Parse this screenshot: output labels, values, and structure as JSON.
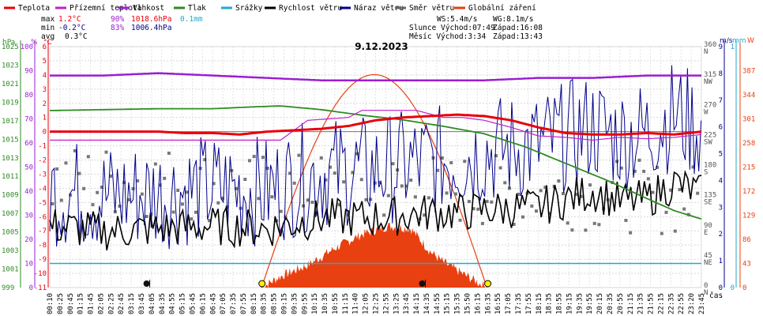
{
  "chart_data": {
    "type": "line",
    "title": "9.12.2023",
    "xlabel": "čas",
    "legend": {
      "placement": "top",
      "entries": [
        {
          "key": "temp",
          "label": "Teplota",
          "color": "#e8000b"
        },
        {
          "key": "feels",
          "label": "Přízemní teplota",
          "color": "#c020c8"
        },
        {
          "key": "hum",
          "label": "Vlhkost",
          "color": "#9a1ed2"
        },
        {
          "key": "press",
          "label": "Tlak",
          "color": "#2e8b22"
        },
        {
          "key": "rain",
          "label": "Srážky",
          "color": "#20aacc"
        },
        {
          "key": "ws",
          "label": "Rychlost větru",
          "color": "#000000"
        },
        {
          "key": "wg",
          "label": "Náraz větru",
          "color": "#00008b"
        },
        {
          "key": "wd",
          "label": "Směr větru",
          "color": "#666666"
        },
        {
          "key": "sol",
          "label": "Globální záření",
          "color": "#e84010"
        }
      ]
    },
    "stats": {
      "max": {
        "label": "max",
        "temp": "1.2°C",
        "hum": "90%",
        "press": "1018.6hPa",
        "rain": "0.1mm"
      },
      "min": {
        "label": "min",
        "temp": "-0.2°C",
        "hum": "83%",
        "press": "1006.4hPa"
      },
      "avg": {
        "label": "avg",
        "temp": "0.3°C"
      }
    },
    "info": {
      "ws": "WS:5.4m/s",
      "wg": "WG:8.1m/s",
      "sun": "Slunce Východ:07:49",
      "sun_set": "Západ:16:08",
      "moon": "Měsíc  Východ:3:34",
      "moon_set": "Západ:13:43"
    },
    "axes": {
      "hpa": {
        "unit": "hPa",
        "ticks": [
          "999",
          "1001",
          "1003",
          "1005",
          "1007",
          "1009",
          "1011",
          "1013",
          "1015",
          "1017",
          "1019",
          "1021",
          "1023",
          "1025"
        ],
        "range": [
          999,
          1025
        ]
      },
      "pct": {
        "unit": "%",
        "ticks": [
          "0",
          "10",
          "20",
          "30",
          "40",
          "50",
          "60",
          "70",
          "80",
          "90",
          "100"
        ],
        "range": [
          0,
          100
        ]
      },
      "degc": {
        "unit": "°C",
        "ticks": [
          "-11",
          "-10",
          "-9",
          "-8",
          "-7",
          "-6",
          "-5",
          "-4",
          "-3",
          "-2",
          "-1",
          "0",
          "1",
          "2",
          "3",
          "4",
          "5",
          "6"
        ],
        "range": [
          -11,
          6
        ]
      },
      "dir": {
        "ticks": [
          {
            "deg": "0",
            "card": "N"
          },
          {
            "deg": "45",
            "card": "NE"
          },
          {
            "deg": "90",
            "card": "E"
          },
          {
            "deg": "135",
            "card": "SE"
          },
          {
            "deg": "180",
            "card": "S"
          },
          {
            "deg": "225",
            "card": "SW"
          },
          {
            "deg": "270",
            "card": "W"
          },
          {
            "deg": "315",
            "card": "NW"
          },
          {
            "deg": "360",
            "card": "N"
          }
        ],
        "range": [
          0,
          360
        ]
      },
      "ms": {
        "unit": "m/s",
        "ticks": [
          "0",
          "1",
          "2",
          "3",
          "4",
          "5",
          "6",
          "7",
          "8",
          "9"
        ],
        "range": [
          0,
          9
        ]
      },
      "mm": {
        "unit": "mm",
        "ticks": [
          "0",
          "1"
        ],
        "range": [
          0,
          1
        ]
      },
      "wm2": {
        "unit": "W",
        "ticks": [
          "0",
          "43",
          "86",
          "129",
          "172",
          "215",
          "258",
          "301",
          "344",
          "387"
        ],
        "range": [
          0,
          430
        ]
      }
    },
    "x_ticks": [
      "00:10",
      "00:25",
      "00:45",
      "01:15",
      "01:45",
      "02:05",
      "02:25",
      "02:45",
      "03:15",
      "03:45",
      "04:05",
      "04:35",
      "04:55",
      "05:15",
      "05:45",
      "06:15",
      "06:45",
      "07:05",
      "07:35",
      "07:55",
      "08:15",
      "08:35",
      "08:55",
      "09:15",
      "09:35",
      "09:55",
      "10:15",
      "10:35",
      "10:55",
      "11:15",
      "11:40",
      "12:05",
      "12:25",
      "12:55",
      "13:25",
      "13:45",
      "14:15",
      "14:35",
      "14:55",
      "15:15",
      "15:35",
      "15:50",
      "16:15",
      "16:35",
      "16:55",
      "17:05",
      "17:35",
      "17:55",
      "18:15",
      "18:35",
      "18:55",
      "19:15",
      "19:35",
      "19:55",
      "20:15",
      "20:35",
      "20:55",
      "21:15",
      "21:35",
      "21:55",
      "22:15",
      "22:35",
      "22:55",
      "23:20",
      "23:45"
    ],
    "markers": [
      {
        "type": "moonrise",
        "time": "03:34"
      },
      {
        "type": "sunrise",
        "time": "07:49"
      },
      {
        "type": "moonset",
        "time": "13:43"
      },
      {
        "type": "sunset",
        "time": "16:08"
      }
    ],
    "series": [
      {
        "name": "Teplota",
        "unit": "°C",
        "t": [
          0,
          1,
          2,
          3,
          4,
          5,
          6,
          7,
          8,
          9,
          10,
          11,
          12,
          13,
          14,
          15,
          16,
          17,
          18,
          19,
          20,
          21,
          22,
          23,
          24
        ],
        "values": [
          0.0,
          0.0,
          0.0,
          0.0,
          0.0,
          -0.1,
          -0.1,
          -0.2,
          0.0,
          0.1,
          0.2,
          0.4,
          0.8,
          1.0,
          1.1,
          1.2,
          1.1,
          0.8,
          0.3,
          -0.1,
          -0.2,
          -0.2,
          -0.1,
          -0.2,
          0.0
        ]
      },
      {
        "name": "Přízemní teplota",
        "unit": "°C",
        "t": [
          0,
          0.5,
          2,
          3.5,
          5,
          6.5,
          8.5,
          9.5,
          11,
          11.5,
          12.5,
          13.5,
          14.5,
          15.2,
          16,
          17,
          18,
          19,
          20,
          21,
          22,
          23,
          24
        ],
        "values": [
          -0.6,
          -0.6,
          -0.6,
          -0.6,
          -0.6,
          -0.6,
          -0.6,
          0.8,
          1.0,
          1.5,
          1.5,
          1.5,
          1.0,
          1.0,
          0.8,
          0.3,
          -0.3,
          -0.4,
          -0.6,
          -0.4,
          -0.5,
          -0.4,
          -0.2
        ]
      },
      {
        "name": "Vlhkost",
        "unit": "%",
        "t": [
          0,
          2,
          4,
          6,
          8,
          10,
          12,
          14,
          16,
          18,
          20,
          22,
          24
        ],
        "values": [
          88,
          88,
          89,
          88,
          87,
          86,
          86,
          86,
          86,
          87,
          87,
          88,
          88
        ]
      },
      {
        "name": "Tlak",
        "unit": "hPa",
        "t": [
          0,
          2,
          4,
          6,
          7.5,
          8.5,
          10,
          11.5,
          13,
          14.5,
          16,
          17.5,
          19,
          20.5,
          22,
          23,
          24
        ],
        "values": [
          1018.1,
          1018.2,
          1018.3,
          1018.3,
          1018.5,
          1018.6,
          1018.2,
          1017.6,
          1017.1,
          1016.4,
          1015.6,
          1014.2,
          1012.4,
          1010.6,
          1008.6,
          1007.3,
          1006.4
        ]
      },
      {
        "name": "Srážky",
        "unit": "mm",
        "t": [
          0,
          24
        ],
        "values": [
          0.1,
          0.1
        ]
      },
      {
        "name": "Rychlost větru",
        "unit": "m/s",
        "t": [
          0,
          2,
          4,
          6,
          8,
          10,
          12,
          14,
          15,
          16,
          18,
          20,
          21,
          22,
          23,
          24
        ],
        "values": [
          2.3,
          2.1,
          2.2,
          2.3,
          2.2,
          2.6,
          2.6,
          2.8,
          2.8,
          2.9,
          3.0,
          3.6,
          3.2,
          3.3,
          3.9,
          3.5
        ]
      },
      {
        "name": "Náraz větru",
        "unit": "m/s",
        "t": [
          0,
          2,
          4,
          6,
          8,
          10,
          12,
          14,
          15,
          16,
          18,
          20,
          21,
          22,
          23,
          24
        ],
        "values": [
          3.6,
          3.4,
          3.5,
          3.7,
          3.6,
          4.3,
          4.4,
          4.7,
          4.8,
          5.1,
          5.3,
          6.0,
          5.6,
          5.8,
          6.5,
          5.9
        ]
      },
      {
        "name": "Směr větru",
        "unit": "°",
        "t": [
          0,
          4,
          8,
          12,
          16,
          20,
          24
        ],
        "values": [
          160,
          158,
          145,
          150,
          145,
          140,
          130
        ]
      },
      {
        "name": "Globální záření",
        "unit": "W/m2",
        "t": [
          7.8,
          8.5,
          9.5,
          10.5,
          11.5,
          12.5,
          13.3,
          14,
          14.5,
          15.2,
          16.1
        ],
        "values": [
          0,
          20,
          40,
          70,
          95,
          110,
          105,
          65,
          45,
          25,
          0
        ]
      }
    ],
    "solar_curve_peak_wm2": 380,
    "grid": true
  }
}
